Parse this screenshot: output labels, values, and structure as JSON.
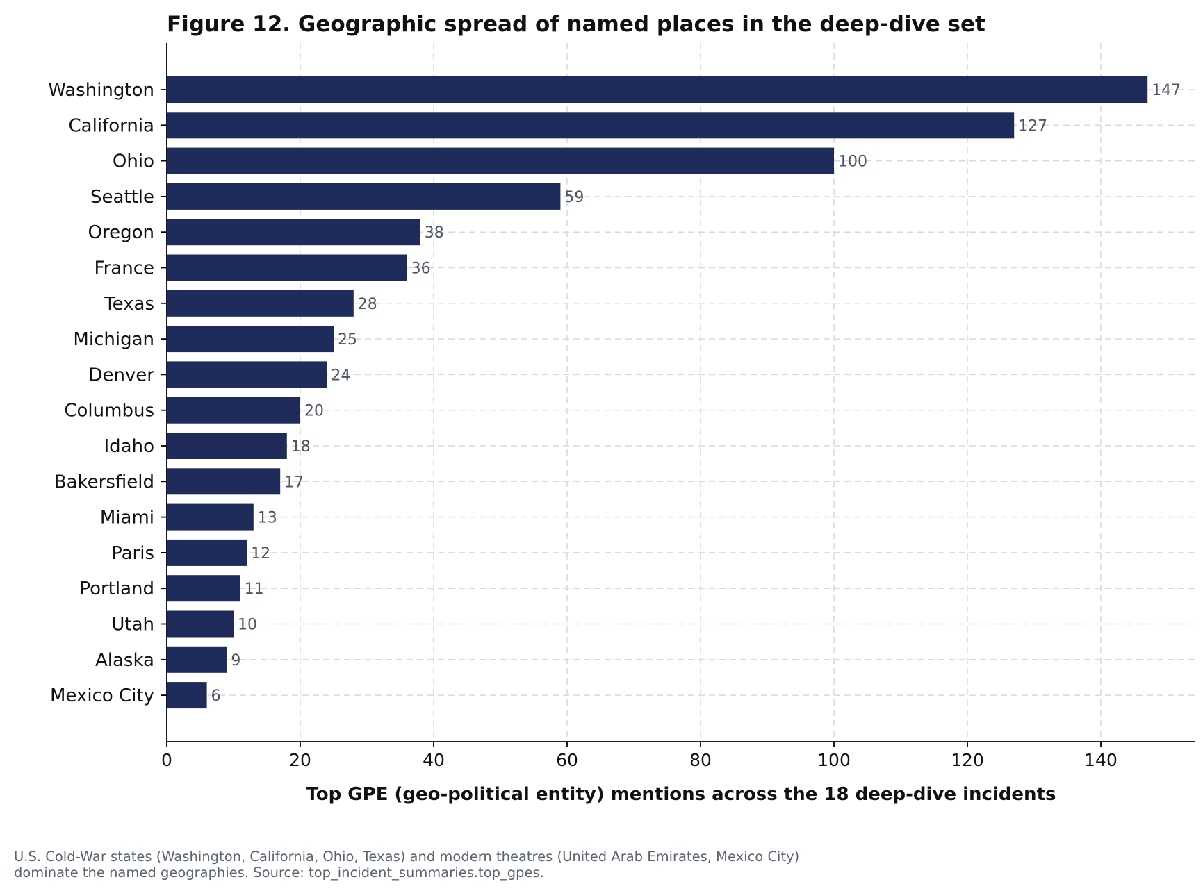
{
  "chart_data": {
    "type": "bar",
    "orientation": "horizontal",
    "title": "Figure 12. Geographic spread of named places in the deep-dive set",
    "xlabel": "Top GPE (geo-political entity) mentions across the 18 deep-dive incidents",
    "ylabel": "",
    "xlim": [
      0,
      154
    ],
    "xticks": [
      0,
      20,
      40,
      60,
      80,
      100,
      120,
      140
    ],
    "grid": true,
    "bar_color": "#1f2b5b",
    "value_label_color": "#4b5563",
    "categories": [
      "Washington",
      "California",
      "Ohio",
      "Seattle",
      "Oregon",
      "France",
      "Texas",
      "Michigan",
      "Denver",
      "Columbus",
      "Idaho",
      "Bakersfield",
      "Miami",
      "Paris",
      "Portland",
      "Utah",
      "Alaska",
      "Mexico City"
    ],
    "values": [
      147,
      127,
      100,
      59,
      38,
      36,
      28,
      25,
      24,
      20,
      18,
      17,
      13,
      12,
      11,
      10,
      9,
      6
    ]
  },
  "caption": {
    "line1": "U.S. Cold-War states (Washington, California, Ohio, Texas) and modern theatres (United Arab Emirates, Mexico City)",
    "line2": "dominate the named geographies. Source: top_incident_summaries.top_gpes."
  }
}
